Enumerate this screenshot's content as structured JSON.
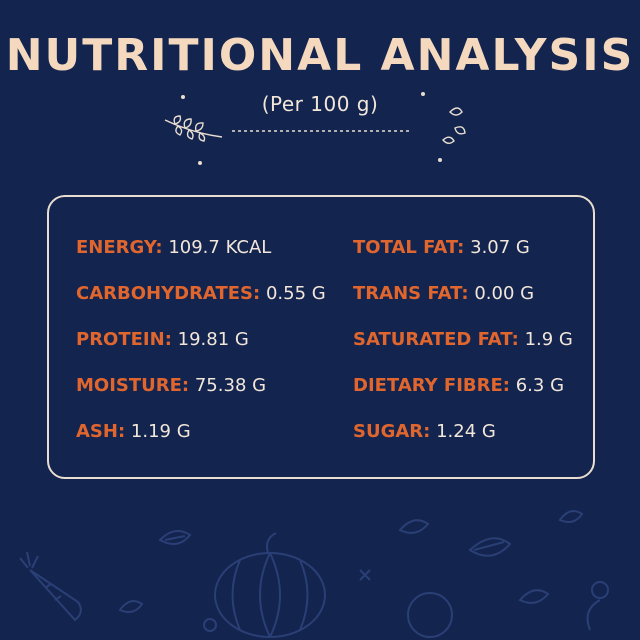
{
  "title": "NUTRITIONAL ANALYSIS",
  "subtitle": "(Per 100 g)",
  "left_column": [
    {
      "label": "ENERGY:",
      "value": "109.7 KCAL"
    },
    {
      "label": "CARBOHYDRATES:",
      "value": "0.55 G"
    },
    {
      "label": "PROTEIN:",
      "value": "19.81 G"
    },
    {
      "label": "MOISTURE:",
      "value": "75.38 G"
    },
    {
      "label": "ASH:",
      "value": "1.19 G"
    }
  ],
  "right_column": [
    {
      "label": "TOTAL FAT:",
      "value": "3.07 G"
    },
    {
      "label": "TRANS FAT:",
      "value": "0.00 G"
    },
    {
      "label": "SATURATED FAT:",
      "value": "1.9 G"
    },
    {
      "label": "DIETARY FIBRE:",
      "value": "6.3 G"
    },
    {
      "label": "SUGAR:",
      "value": "1.24 G"
    }
  ],
  "colors": {
    "background": "#13244e",
    "title": "#f4d9bf",
    "label": "#e0662e",
    "value": "#f2e6da",
    "border": "#e8ddd0"
  },
  "icons": [
    "leaf-sprig-icon",
    "leaves-icon",
    "carrot-icon",
    "pumpkin-icon"
  ]
}
